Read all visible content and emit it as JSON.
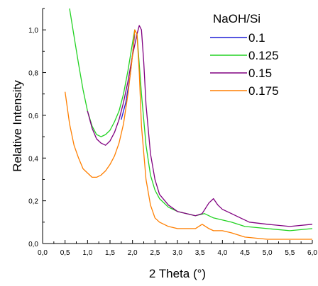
{
  "chart_data": {
    "type": "line",
    "xlabel": "2 Theta (°)",
    "ylabel": "Relative Intensity",
    "xlim": [
      0.0,
      6.0
    ],
    "ylim": [
      0.0,
      1.1
    ],
    "x_ticks": [
      "0,0",
      "0,5",
      "1,0",
      "1,5",
      "2,0",
      "2,5",
      "3,0",
      "3,5",
      "4,0",
      "4,5",
      "5,0",
      "5,5",
      "6,0"
    ],
    "y_ticks": [
      "0,0",
      "0,2",
      "0,4",
      "0,6",
      "0,8",
      "1,0"
    ],
    "legend": {
      "title": "NaOH/Si",
      "placement": "top-right"
    },
    "grid": false,
    "series": [
      {
        "name": "0.1",
        "color": "#1f1fd6",
        "x": [
          1.75,
          1.85,
          1.95,
          2.05
        ],
        "y": [
          0.58,
          0.66,
          0.79,
          0.98
        ]
      },
      {
        "name": "0.125",
        "color": "#22d222",
        "x": [
          0.6,
          0.7,
          0.8,
          0.9,
          1.0,
          1.1,
          1.2,
          1.3,
          1.4,
          1.5,
          1.6,
          1.7,
          1.8,
          1.9,
          2.0,
          2.05,
          2.1,
          2.2,
          2.3,
          2.4,
          2.5,
          2.6,
          2.8,
          3.0,
          3.2,
          3.4,
          3.6,
          3.8,
          4.0,
          4.2,
          4.5,
          5.0,
          5.5,
          6.0
        ],
        "y": [
          1.1,
          0.97,
          0.84,
          0.72,
          0.62,
          0.55,
          0.51,
          0.5,
          0.51,
          0.53,
          0.57,
          0.62,
          0.7,
          0.81,
          0.94,
          1.0,
          0.98,
          0.7,
          0.46,
          0.32,
          0.25,
          0.21,
          0.17,
          0.15,
          0.14,
          0.13,
          0.14,
          0.12,
          0.11,
          0.1,
          0.08,
          0.07,
          0.06,
          0.07
        ]
      },
      {
        "name": "0.15",
        "color": "#800080",
        "x": [
          1.0,
          1.1,
          1.2,
          1.3,
          1.4,
          1.5,
          1.6,
          1.7,
          1.8,
          1.9,
          2.0,
          2.1,
          2.15,
          2.2,
          2.25,
          2.3,
          2.4,
          2.5,
          2.6,
          2.8,
          3.0,
          3.2,
          3.4,
          3.55,
          3.7,
          3.8,
          3.9,
          4.0,
          4.2,
          4.4,
          4.6,
          5.0,
          5.5,
          6.0
        ],
        "y": [
          0.62,
          0.54,
          0.49,
          0.47,
          0.46,
          0.48,
          0.52,
          0.58,
          0.66,
          0.76,
          0.88,
          0.98,
          1.02,
          1.0,
          0.85,
          0.65,
          0.42,
          0.3,
          0.23,
          0.18,
          0.15,
          0.14,
          0.13,
          0.14,
          0.19,
          0.21,
          0.18,
          0.16,
          0.14,
          0.12,
          0.1,
          0.09,
          0.08,
          0.09
        ]
      },
      {
        "name": "0.175",
        "color": "#ff7f00",
        "x": [
          0.5,
          0.6,
          0.7,
          0.8,
          0.9,
          1.0,
          1.1,
          1.2,
          1.3,
          1.4,
          1.5,
          1.6,
          1.7,
          1.8,
          1.9,
          2.0,
          2.05,
          2.1,
          2.15,
          2.2,
          2.3,
          2.4,
          2.5,
          2.6,
          2.8,
          3.0,
          3.2,
          3.4,
          3.55,
          3.7,
          3.8,
          4.0,
          4.2,
          4.5,
          5.0,
          5.5,
          6.0
        ],
        "y": [
          0.71,
          0.56,
          0.46,
          0.4,
          0.35,
          0.33,
          0.31,
          0.31,
          0.32,
          0.34,
          0.37,
          0.41,
          0.47,
          0.56,
          0.7,
          0.88,
          1.0,
          0.98,
          0.8,
          0.55,
          0.3,
          0.18,
          0.12,
          0.1,
          0.08,
          0.07,
          0.07,
          0.07,
          0.09,
          0.07,
          0.06,
          0.06,
          0.05,
          0.03,
          0.02,
          0.02,
          0.02
        ]
      }
    ]
  }
}
